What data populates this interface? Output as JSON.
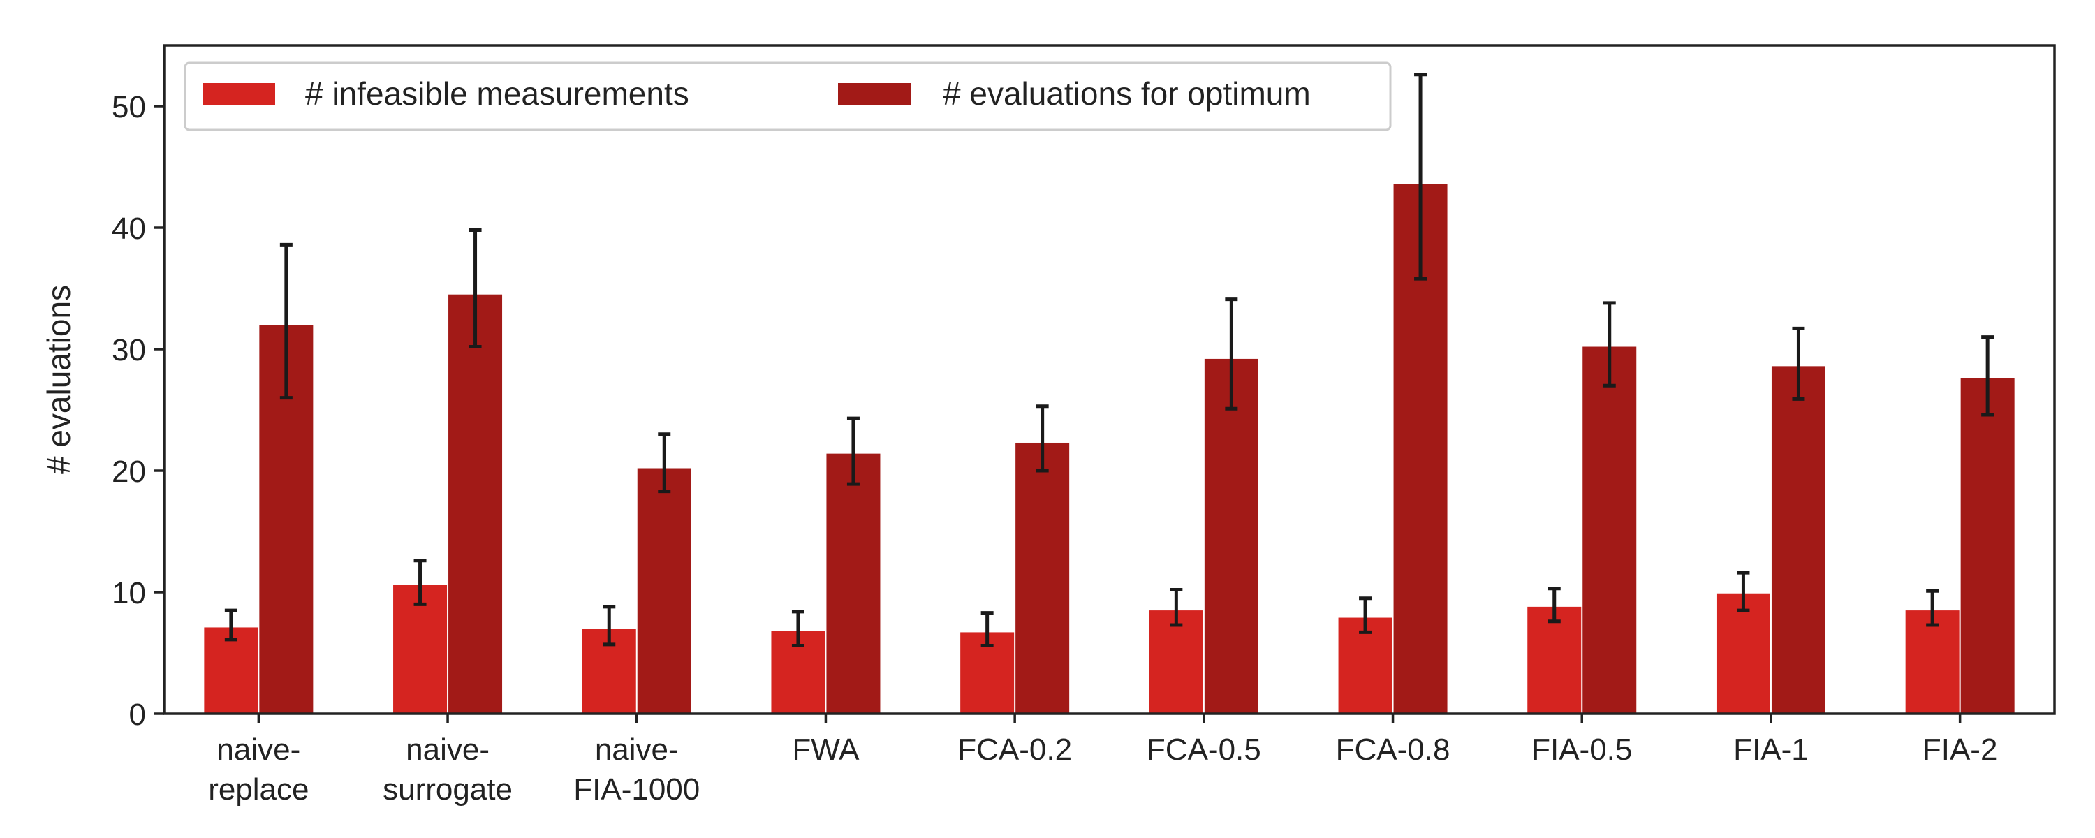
{
  "chart_data": {
    "type": "bar",
    "title": "",
    "xlabel": "",
    "ylabel": "# evaluations",
    "ylim": [
      0,
      55
    ],
    "yticks": [
      0,
      10,
      20,
      30,
      40,
      50
    ],
    "grid": false,
    "legend_placement": "top-left",
    "categories": [
      [
        "naive-",
        "replace"
      ],
      [
        "naive-",
        "surrogate"
      ],
      [
        "naive-",
        "FIA-1000"
      ],
      [
        "FWA"
      ],
      [
        "FCA-0.2"
      ],
      [
        "FCA-0.5"
      ],
      [
        "FCA-0.8"
      ],
      [
        "FIA-0.5"
      ],
      [
        "FIA-1"
      ],
      [
        "FIA-2"
      ]
    ],
    "series": [
      {
        "name": "# infeasible measurements",
        "color": "#d52420",
        "values": [
          7.1,
          10.6,
          7.0,
          6.8,
          6.7,
          8.5,
          7.9,
          8.8,
          9.9,
          8.5
        ],
        "err_low": [
          6.1,
          9.0,
          5.7,
          5.6,
          5.6,
          7.3,
          6.7,
          7.6,
          8.5,
          7.3
        ],
        "err_high": [
          8.5,
          12.6,
          8.8,
          8.4,
          8.3,
          10.2,
          9.5,
          10.3,
          11.6,
          10.1
        ]
      },
      {
        "name": "# evaluations for optimum",
        "color": "#a21a17",
        "values": [
          32.0,
          34.5,
          20.2,
          21.4,
          22.3,
          29.2,
          43.6,
          30.2,
          28.6,
          27.6
        ],
        "err_low": [
          26.0,
          30.2,
          18.3,
          18.9,
          20.0,
          25.1,
          35.8,
          27.0,
          25.9,
          24.6
        ],
        "err_high": [
          38.6,
          39.8,
          23.0,
          24.3,
          25.3,
          34.1,
          52.6,
          33.8,
          31.7,
          31.0
        ]
      }
    ]
  }
}
